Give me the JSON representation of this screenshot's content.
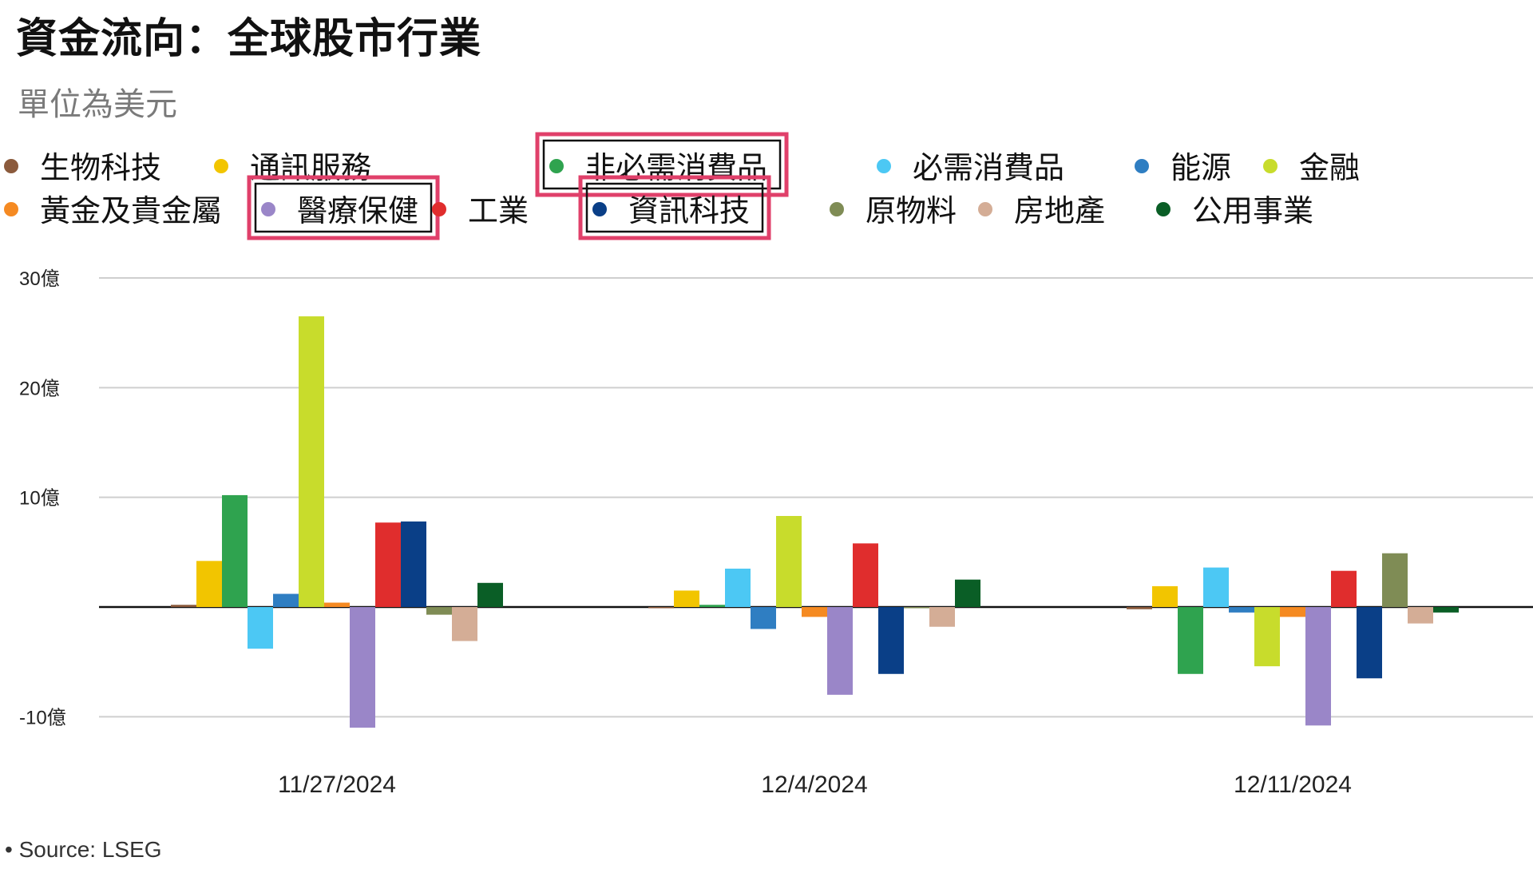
{
  "header": {
    "title": "資金流向：全球股市行業",
    "subtitle": "單位為美元"
  },
  "footer": {
    "source": "• Source: LSEG"
  },
  "chart_data": {
    "type": "bar",
    "title": "資金流向：全球股市行業",
    "subtitle": "單位為美元",
    "unit": "億",
    "categories": [
      "11/27/2024",
      "12/4/2024",
      "12/11/2024"
    ],
    "ylim": [
      -11,
      30
    ],
    "yticks": [
      {
        "value": 30,
        "label": "30億"
      },
      {
        "value": 20,
        "label": "20億"
      },
      {
        "value": 10,
        "label": "10億"
      },
      {
        "value": -10,
        "label": "-10億"
      }
    ],
    "grid": true,
    "legend_position": "top",
    "highlighted_series": [
      "非必需消費品",
      "醫療保健",
      "資訊科技"
    ],
    "highlight_color": "#e0406a",
    "series": [
      {
        "name": "生物科技",
        "color": "#8b5a3c",
        "values": [
          0.2,
          -0.1,
          -0.2
        ]
      },
      {
        "name": "通訊服務",
        "color": "#f2c500",
        "values": [
          4.2,
          1.5,
          1.9
        ]
      },
      {
        "name": "非必需消費品",
        "color": "#2fa34f",
        "values": [
          10.2,
          0.2,
          -6.1
        ]
      },
      {
        "name": "必需消費品",
        "color": "#4cc8f4",
        "values": [
          -3.8,
          3.5,
          3.6
        ]
      },
      {
        "name": "能源",
        "color": "#2f7ec2",
        "values": [
          1.2,
          -2.0,
          -0.5
        ]
      },
      {
        "name": "金融",
        "color": "#c8dc2c",
        "values": [
          26.5,
          8.3,
          -5.4
        ]
      },
      {
        "name": "黃金及貴金屬",
        "color": "#f58a22",
        "values": [
          0.4,
          -0.9,
          -0.9
        ]
      },
      {
        "name": "醫療保健",
        "color": "#9a86c8",
        "values": [
          -11.0,
          -8.0,
          -10.8
        ]
      },
      {
        "name": "工業",
        "color": "#e02d2d",
        "values": [
          7.7,
          5.8,
          3.3
        ]
      },
      {
        "name": "資訊科技",
        "color": "#0a3f87",
        "values": [
          7.8,
          -6.1,
          -6.5
        ]
      },
      {
        "name": "原物料",
        "color": "#7f8c55",
        "values": [
          -0.7,
          -0.1,
          4.9
        ]
      },
      {
        "name": "房地產",
        "color": "#d4ad96",
        "values": [
          -3.1,
          -1.8,
          -1.5
        ]
      },
      {
        "name": "公用事業",
        "color": "#0a5e26",
        "values": [
          2.2,
          2.5,
          -0.5
        ]
      }
    ]
  }
}
